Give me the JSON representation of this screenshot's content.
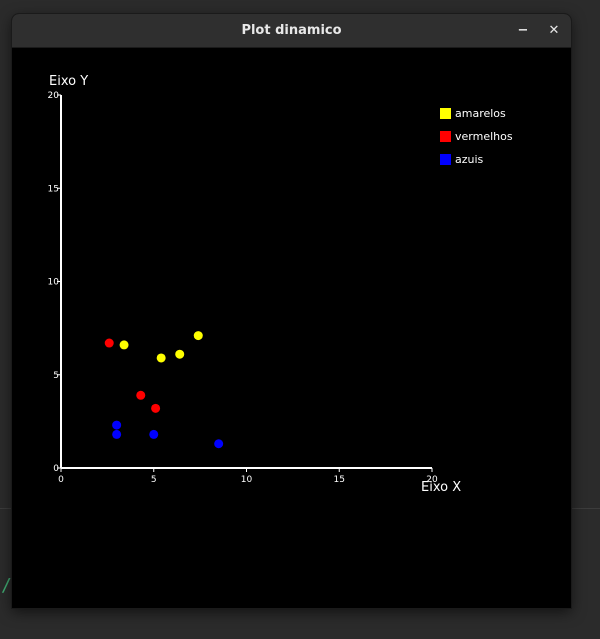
{
  "window": {
    "title": "Plot dinamico",
    "minimize_glyph": "−",
    "close_glyph": "✕"
  },
  "desktop": {
    "glyph": "/"
  },
  "chart_data": {
    "type": "scatter",
    "xlabel": "Eixo X",
    "ylabel": "Eixo Y",
    "xlim": [
      0,
      20
    ],
    "ylim": [
      0,
      20
    ],
    "xticks": [
      0,
      5,
      10,
      15,
      20
    ],
    "yticks": [
      0,
      5,
      10,
      15,
      20
    ],
    "grid": false,
    "legend_position": "top-right",
    "series": [
      {
        "name": "amarelos",
        "color": "#ffff00",
        "points": [
          [
            3.4,
            6.6
          ],
          [
            5.4,
            5.9
          ],
          [
            6.4,
            6.1
          ],
          [
            7.4,
            7.1
          ]
        ]
      },
      {
        "name": "vermelhos",
        "color": "#ff0000",
        "points": [
          [
            2.6,
            6.7
          ],
          [
            4.3,
            3.9
          ],
          [
            5.1,
            3.2
          ]
        ]
      },
      {
        "name": "azuis",
        "color": "#0000ff",
        "points": [
          [
            3.0,
            2.3
          ],
          [
            3.0,
            1.8
          ],
          [
            5.0,
            1.8
          ],
          [
            8.5,
            1.3
          ]
        ]
      }
    ]
  }
}
